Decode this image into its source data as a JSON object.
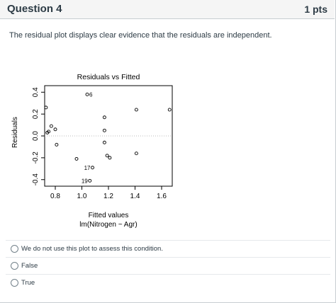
{
  "question": {
    "title": "Question 4",
    "points": "1 pts",
    "prompt": "The residual plot displays clear evidence that the residuals are independent."
  },
  "plot": {
    "title": "Residuals vs Fitted",
    "xlabel_line1": "Fitted values",
    "xlabel_line2": "lm(Nitrogen ~ Agr)",
    "ylabel": "Residuals"
  },
  "chart_data": {
    "type": "scatter",
    "title": "Residuals vs Fitted",
    "xlabel": "Fitted values",
    "ylabel": "Residuals",
    "xlim": [
      0.72,
      1.68
    ],
    "ylim": [
      -0.46,
      0.46
    ],
    "x_ticks": [
      "0.8",
      "1.0",
      "1.2",
      "1.4",
      "1.6"
    ],
    "y_ticks": [
      "-0.4",
      "-0.2",
      "0.0",
      "0.2",
      "0.4"
    ],
    "zero_line": true,
    "points": [
      {
        "x": 0.73,
        "y": 0.26,
        "label": ""
      },
      {
        "x": 0.74,
        "y": 0.03,
        "label": ""
      },
      {
        "x": 0.75,
        "y": 0.04,
        "label": ""
      },
      {
        "x": 0.77,
        "y": 0.09,
        "label": ""
      },
      {
        "x": 0.8,
        "y": 0.06,
        "label": ""
      },
      {
        "x": 0.81,
        "y": -0.08,
        "label": ""
      },
      {
        "x": 0.96,
        "y": -0.21,
        "label": ""
      },
      {
        "x": 1.04,
        "y": 0.38,
        "label": "6"
      },
      {
        "x": 1.06,
        "y": -0.41,
        "label": "19"
      },
      {
        "x": 1.08,
        "y": -0.29,
        "label": "17"
      },
      {
        "x": 1.17,
        "y": 0.17,
        "label": ""
      },
      {
        "x": 1.17,
        "y": 0.05,
        "label": ""
      },
      {
        "x": 1.17,
        "y": -0.06,
        "label": ""
      },
      {
        "x": 1.19,
        "y": -0.18,
        "label": ""
      },
      {
        "x": 1.21,
        "y": -0.2,
        "label": ""
      },
      {
        "x": 1.41,
        "y": 0.24,
        "label": ""
      },
      {
        "x": 1.41,
        "y": -0.16,
        "label": ""
      },
      {
        "x": 1.66,
        "y": 0.24,
        "label": ""
      }
    ]
  },
  "answers": [
    {
      "label": "We do not use this plot to assess this condition."
    },
    {
      "label": "False"
    },
    {
      "label": "True"
    }
  ]
}
